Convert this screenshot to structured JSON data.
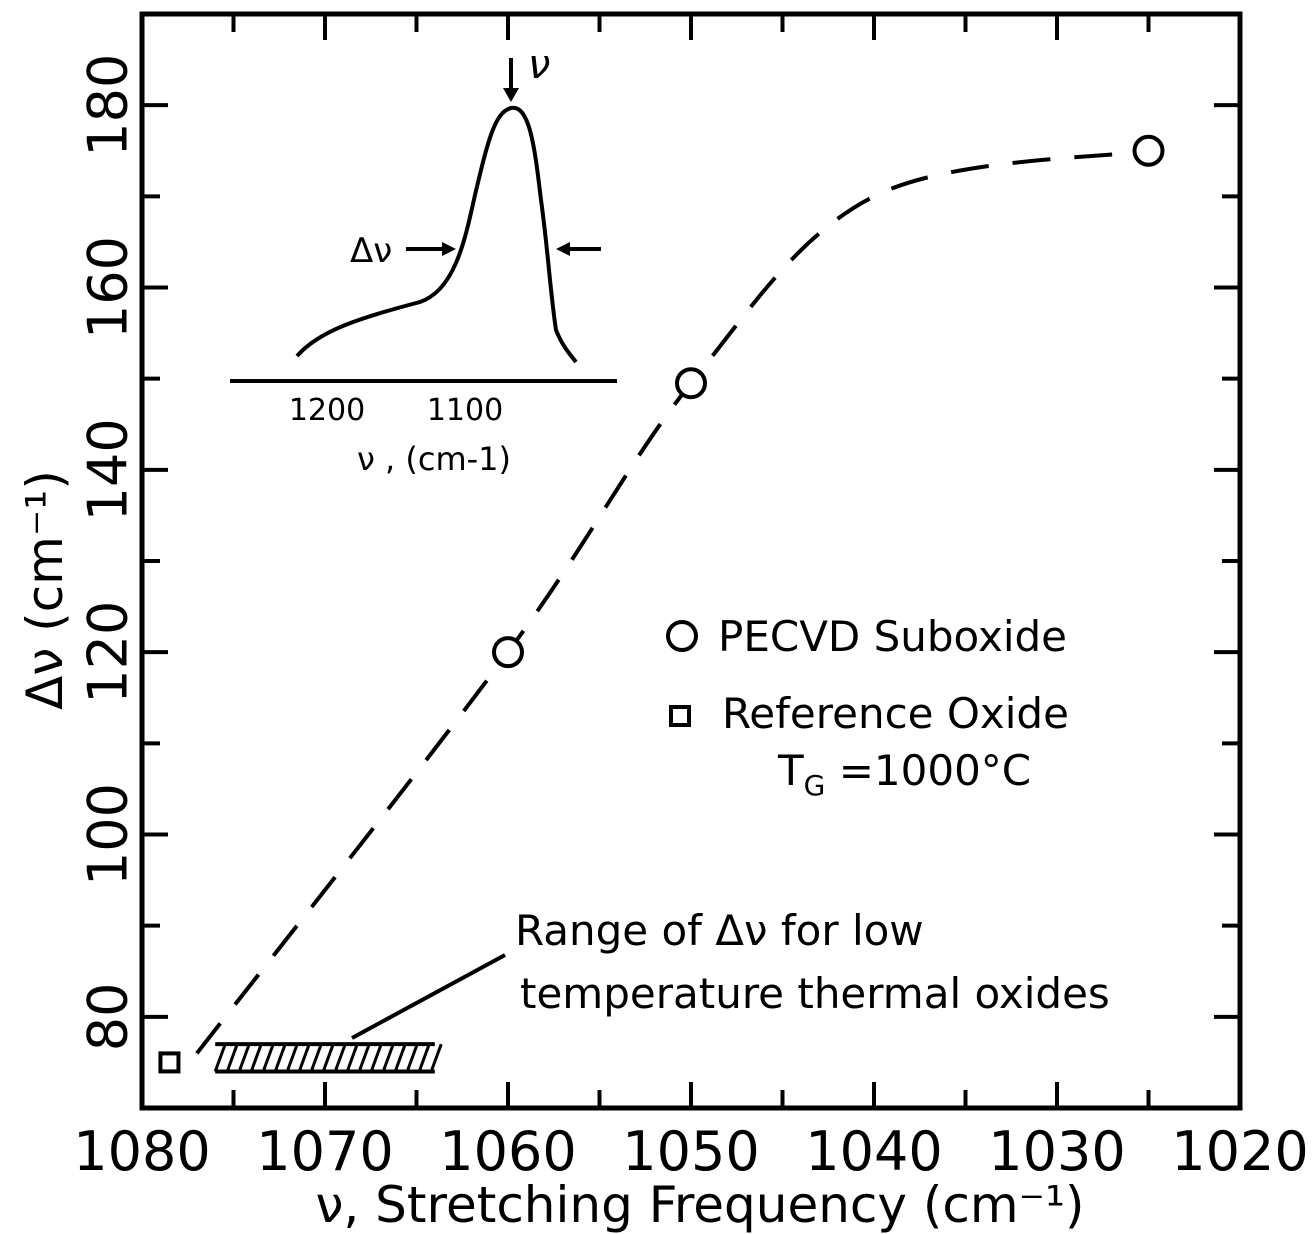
{
  "chart_data": {
    "type": "scatter",
    "title": "",
    "xlabel": "ν, Stretching Frequency (cm⁻¹)",
    "ylabel": "Δν (cm⁻¹)",
    "xlim": [
      1080,
      1020
    ],
    "ylim": [
      70,
      190
    ],
    "x_reversed": true,
    "grid": false,
    "x_ticks": [
      1080,
      1070,
      1060,
      1050,
      1040,
      1030,
      1020
    ],
    "y_ticks": [
      80,
      100,
      120,
      140,
      160,
      180
    ],
    "series": [
      {
        "name": "PECVD Suboxide",
        "marker": "circle",
        "points": [
          {
            "x": 1060,
            "y": 120
          },
          {
            "x": 1050,
            "y": 149.5
          },
          {
            "x": 1025,
            "y": 175
          }
        ]
      },
      {
        "name": "Reference Oxide",
        "marker": "square",
        "points": [
          {
            "x": 1078.5,
            "y": 75
          }
        ]
      }
    ],
    "trend_curve": {
      "style": "dashed",
      "points": [
        {
          "x": 1077,
          "y": 76
        },
        {
          "x": 1060,
          "y": 120
        },
        {
          "x": 1050,
          "y": 149.5
        },
        {
          "x": 1040,
          "y": 170
        },
        {
          "x": 1025,
          "y": 175
        }
      ]
    },
    "range_band": {
      "x": [
        1076,
        1064
      ],
      "y": [
        74,
        77
      ],
      "annotation_lines": [
        "Range of Δν for low",
        "temperature thermal oxides"
      ]
    },
    "legend": {
      "placement": "center-right",
      "entries": [
        {
          "marker": "circle",
          "label": "PECVD Suboxide"
        },
        {
          "marker": "square",
          "label": "Reference Oxide",
          "sublabel": "T_G =1000°C"
        }
      ]
    },
    "inset": {
      "type": "line",
      "xlabel": "ν , (cm-1)",
      "x_ticks": [
        1200,
        1100
      ],
      "peak_label": "ν",
      "width_label": "Δν"
    }
  }
}
